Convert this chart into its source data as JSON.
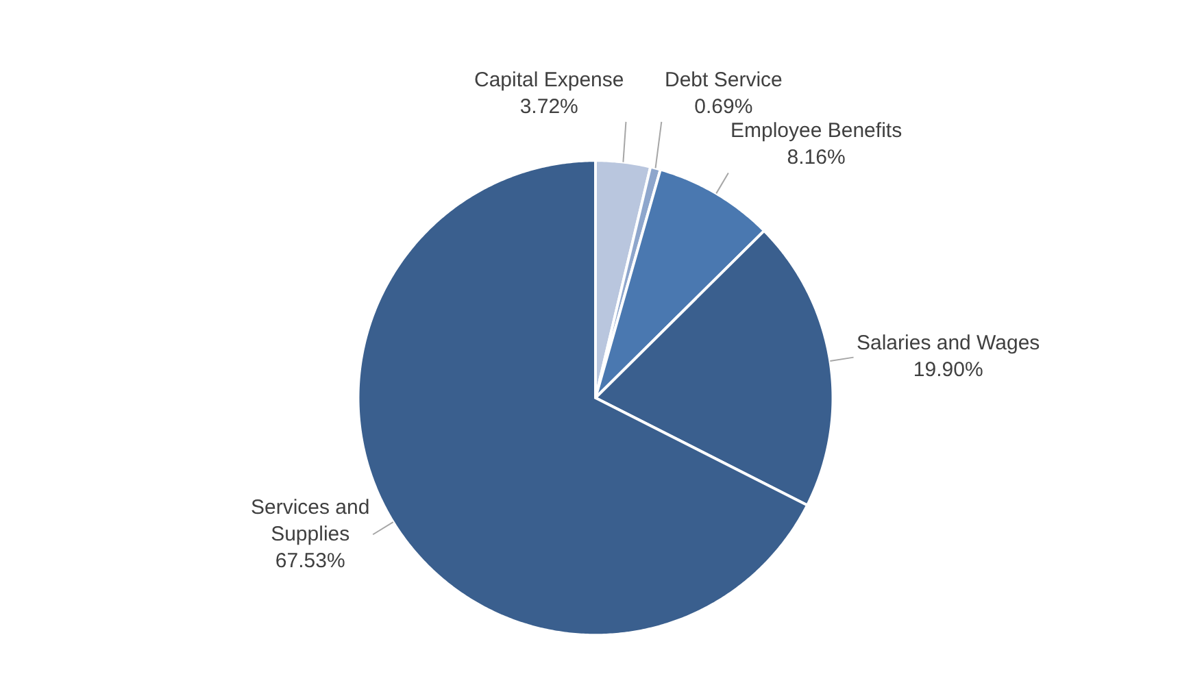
{
  "chart_data": {
    "type": "pie",
    "categories": [
      "Capital Expense",
      "Debt Service",
      "Employee Benefits",
      "Salaries and Wages",
      "Services and Supplies"
    ],
    "values": [
      3.72,
      0.69,
      8.16,
      19.9,
      67.53
    ],
    "value_labels": [
      "3.72%",
      "0.69%",
      "8.16%",
      "19.90%",
      "67.53%"
    ],
    "colors": [
      "#b9c6de",
      "#8ea6cc",
      "#4a78b0",
      "#3a5f8e",
      "#3a5f8e"
    ],
    "legend": false
  }
}
